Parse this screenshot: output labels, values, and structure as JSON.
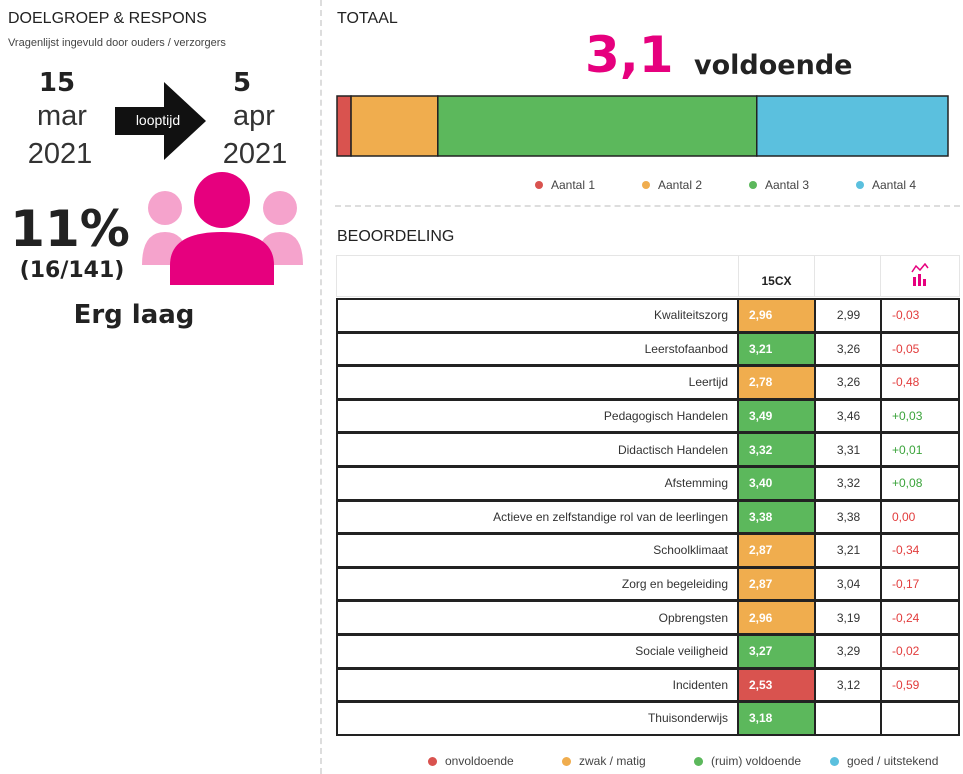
{
  "left": {
    "title": "DOELGROEP & RESPONS",
    "subtitle": "Vragenlijst ingevuld door ouders / verzorgers",
    "start": {
      "day": "15",
      "month": "mar",
      "year": "2021"
    },
    "arrow_label": "looptijd",
    "end": {
      "day": "5",
      "month": "apr",
      "year": "2021"
    },
    "percentage": "11%",
    "count": "(16/141)",
    "verdict": "Erg laag"
  },
  "chart_data": {
    "type": "bar",
    "orientation": "horizontal",
    "stacked": true,
    "title": "TOTAAL",
    "score": "3,1",
    "score_label": "voldoende",
    "categories": [
      null
    ],
    "xlim": [
      0,
      100
    ],
    "series": [
      {
        "name": "Aantal 1",
        "color": "#d9534f",
        "values": [
          2.3
        ]
      },
      {
        "name": "Aantal 2",
        "color": "#f0ad4e",
        "values": [
          14.2
        ]
      },
      {
        "name": "Aantal 3",
        "color": "#5cb85c",
        "values": [
          52.2
        ]
      },
      {
        "name": "Aantal 4",
        "color": "#5bc0de",
        "values": [
          31.3
        ]
      }
    ]
  },
  "table": {
    "title": "BEOORDELING",
    "header": "15CX",
    "rows": [
      {
        "label": "Kwaliteitszorg",
        "score": "2,96",
        "score_color": "#f0ad4e",
        "compare": "2,99",
        "diff": "-0,03"
      },
      {
        "label": "Leerstofaanbod",
        "score": "3,21",
        "score_color": "#5cb85c",
        "compare": "3,26",
        "diff": "-0,05"
      },
      {
        "label": "Leertijd",
        "score": "2,78",
        "score_color": "#f0ad4e",
        "compare": "3,26",
        "diff": "-0,48"
      },
      {
        "label": "Pedagogisch Handelen",
        "score": "3,49",
        "score_color": "#5cb85c",
        "compare": "3,46",
        "diff": "+0,03"
      },
      {
        "label": "Didactisch Handelen",
        "score": "3,32",
        "score_color": "#5cb85c",
        "compare": "3,31",
        "diff": "+0,01"
      },
      {
        "label": "Afstemming",
        "score": "3,40",
        "score_color": "#5cb85c",
        "compare": "3,32",
        "diff": "+0,08"
      },
      {
        "label": "Actieve en zelfstandige rol van de leerlingen",
        "score": "3,38",
        "score_color": "#5cb85c",
        "compare": "3,38",
        "diff": "0,00"
      },
      {
        "label": "Schoolklimaat",
        "score": "2,87",
        "score_color": "#f0ad4e",
        "compare": "3,21",
        "diff": "-0,34"
      },
      {
        "label": "Zorg en begeleiding",
        "score": "2,87",
        "score_color": "#f0ad4e",
        "compare": "3,04",
        "diff": "-0,17"
      },
      {
        "label": "Opbrengsten",
        "score": "2,96",
        "score_color": "#f0ad4e",
        "compare": "3,19",
        "diff": "-0,24"
      },
      {
        "label": "Sociale veiligheid",
        "score": "3,27",
        "score_color": "#5cb85c",
        "compare": "3,29",
        "diff": "-0,02"
      },
      {
        "label": "Incidenten",
        "score": "2,53",
        "score_color": "#d9534f",
        "compare": "3,12",
        "diff": "-0,59"
      },
      {
        "label": "Thuisonderwijs",
        "score": "3,18",
        "score_color": "#5cb85c"
      }
    ]
  },
  "legend": [
    {
      "label": "onvoldoende",
      "color": "#d9534f"
    },
    {
      "label": "zwak / matig",
      "color": "#f0ad4e"
    },
    {
      "label": "(ruim) voldoende",
      "color": "#5cb85c"
    },
    {
      "label": "goed / uitstekend",
      "color": "#5bc0de"
    }
  ]
}
